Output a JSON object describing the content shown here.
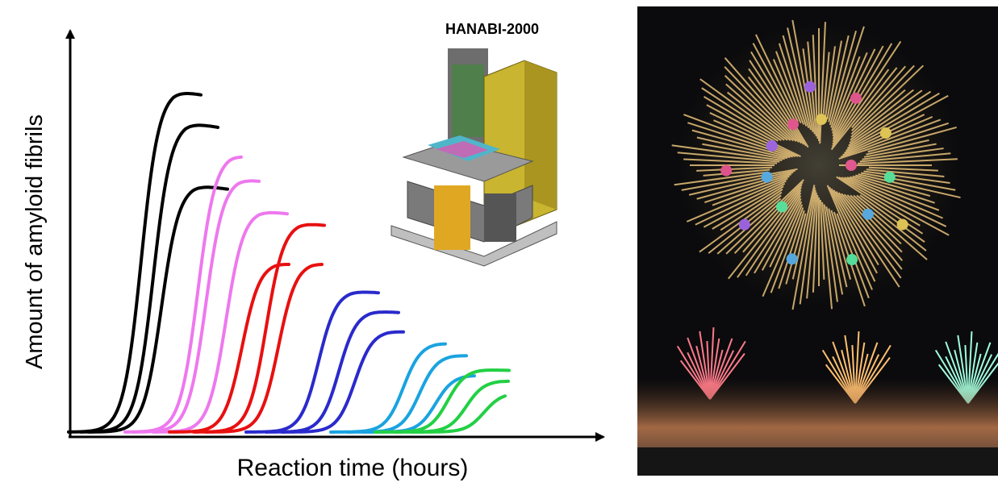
{
  "illustration": {
    "title": "HANABI-2000",
    "y_label": "Amount of amyloid fibrils",
    "x_label": "Reaction time (hours)"
  }
}
